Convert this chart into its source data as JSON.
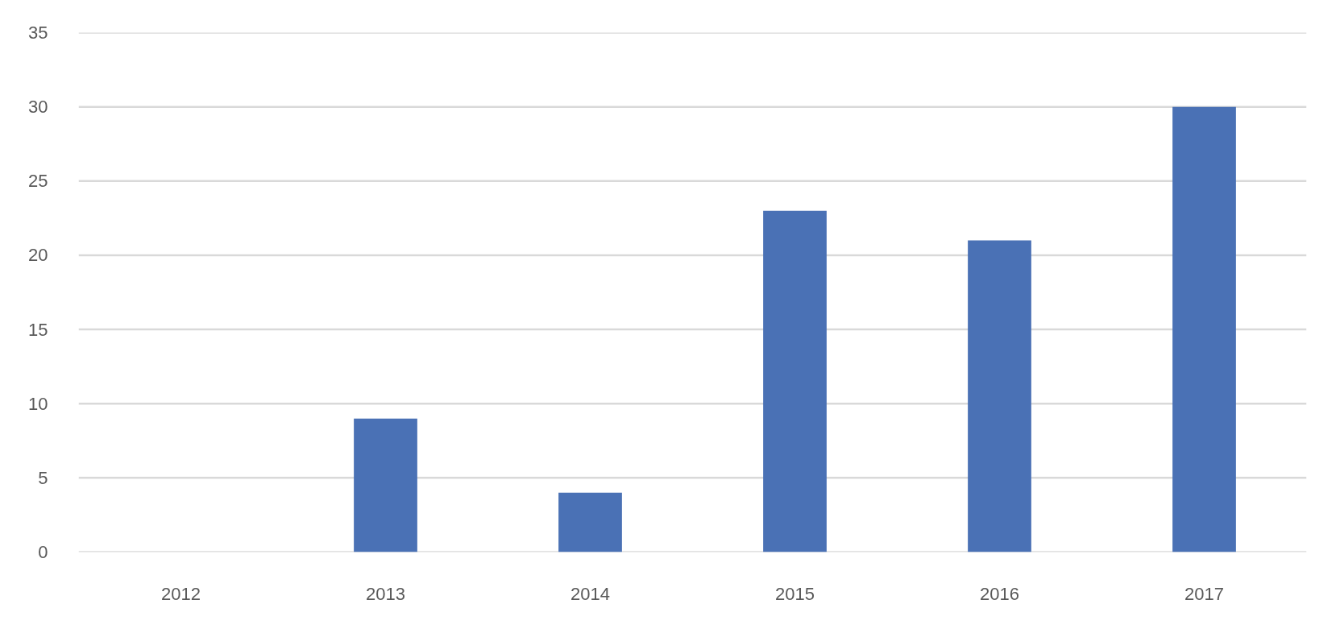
{
  "chart_data": {
    "type": "bar",
    "categories": [
      "2012",
      "2013",
      "2014",
      "2015",
      "2016",
      "2017"
    ],
    "values": [
      0,
      9,
      4,
      23,
      21,
      30
    ],
    "color": "#4a71b5",
    "ylim": [
      0,
      35
    ],
    "yticks": [
      0,
      5,
      10,
      15,
      20,
      25,
      30,
      35
    ],
    "grid": "y"
  }
}
